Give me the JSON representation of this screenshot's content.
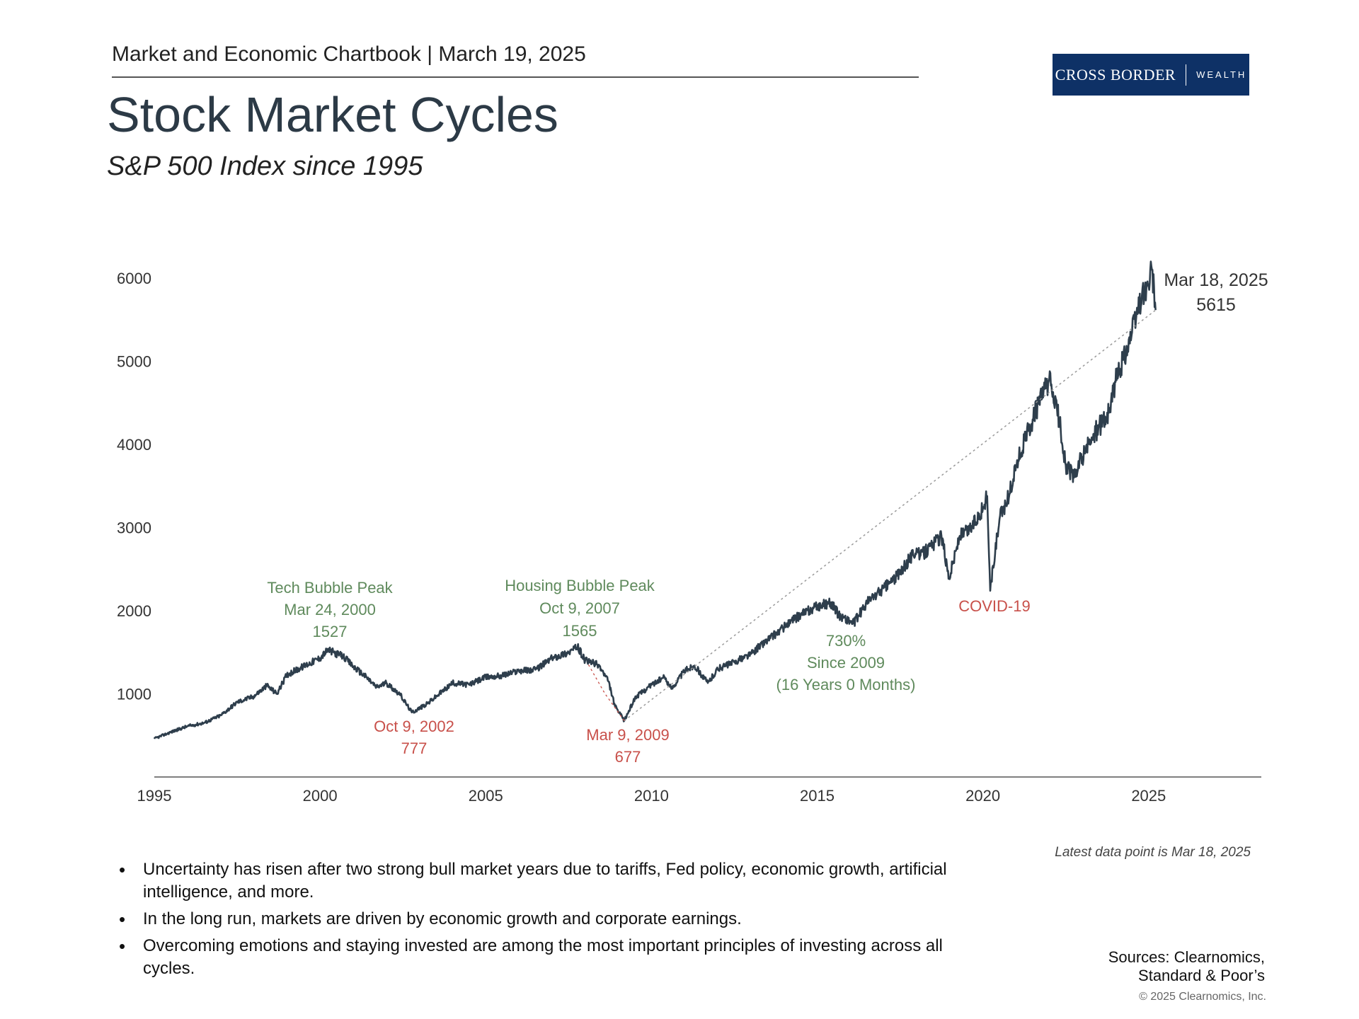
{
  "header": {
    "chartbook": "Market and Economic Chartbook | March 19, 2025",
    "title": "Stock Market Cycles",
    "subtitle": "S&P 500 Index since 1995"
  },
  "logo": {
    "main": "CROSS BORDER",
    "sub": "WEALTH",
    "color": "#0e3166"
  },
  "colors": {
    "line": "#2e3e4c",
    "green": "#5f8a5c",
    "red": "#c8504a",
    "trend": "#9a9a9a"
  },
  "latest_note": "Latest data point is Mar 18, 2025",
  "bullets": [
    "Uncertainty has risen after two strong bull market years due to tariffs, Fed policy, economic growth, artificial intelligence, and more.",
    "In the long run, markets are driven by economic growth and corporate earnings.",
    "Overcoming emotions and staying invested are among the most important principles of investing across all cycles."
  ],
  "sources": [
    "Sources: Clearnomics,",
    "Standard & Poor’s"
  ],
  "copyright": "© 2025 Clearnomics, Inc.",
  "chart_data": {
    "type": "line",
    "title": "Stock Market Cycles",
    "subtitle": "S&P 500 Index since 1995",
    "xlabel": "",
    "ylabel": "",
    "xlim": [
      1995,
      2028.4
    ],
    "ylim": [
      0,
      6400
    ],
    "x_ticks": [
      1995,
      2000,
      2005,
      2010,
      2015,
      2020,
      2025
    ],
    "y_ticks": [
      1000,
      2000,
      3000,
      4000,
      5000,
      6000
    ],
    "series": [
      {
        "name": "S&P 500 Index",
        "x": [
          1995.0,
          1995.5,
          1996.0,
          1996.5,
          1997.0,
          1997.5,
          1998.0,
          1998.4,
          1998.7,
          1999.0,
          1999.5,
          2000.0,
          2000.23,
          2000.7,
          2001.0,
          2001.4,
          2001.7,
          2002.0,
          2002.4,
          2002.77,
          2003.2,
          2003.6,
          2004.0,
          2004.5,
          2005.0,
          2005.5,
          2006.0,
          2006.5,
          2007.0,
          2007.5,
          2007.77,
          2008.0,
          2008.4,
          2008.7,
          2008.9,
          2009.18,
          2009.5,
          2010.0,
          2010.4,
          2010.6,
          2011.0,
          2011.3,
          2011.7,
          2012.0,
          2012.5,
          2013.0,
          2013.5,
          2014.0,
          2014.5,
          2015.0,
          2015.4,
          2015.65,
          2016.1,
          2016.5,
          2017.0,
          2017.5,
          2018.0,
          2018.1,
          2018.5,
          2018.75,
          2018.98,
          2019.3,
          2019.6,
          2020.0,
          2020.13,
          2020.22,
          2020.5,
          2020.8,
          2021.0,
          2021.5,
          2022.0,
          2022.3,
          2022.5,
          2022.75,
          2023.0,
          2023.4,
          2023.8,
          2024.0,
          2024.5,
          2024.8,
          2025.0,
          2025.1,
          2025.21
        ],
        "values": [
          460,
          540,
          610,
          650,
          740,
          900,
          970,
          1100,
          1000,
          1230,
          1330,
          1430,
          1527,
          1450,
          1330,
          1200,
          1080,
          1130,
          1000,
          777,
          870,
          1000,
          1130,
          1110,
          1200,
          1220,
          1280,
          1290,
          1430,
          1500,
          1565,
          1400,
          1350,
          1150,
          850,
          677,
          950,
          1110,
          1200,
          1060,
          1280,
          1340,
          1130,
          1300,
          1380,
          1480,
          1650,
          1800,
          1950,
          2050,
          2100,
          1950,
          1850,
          2100,
          2270,
          2450,
          2750,
          2650,
          2800,
          2900,
          2400,
          2900,
          2980,
          3230,
          3380,
          2240,
          3100,
          3400,
          3750,
          4300,
          4780,
          4300,
          3750,
          3600,
          3850,
          4150,
          4380,
          4750,
          5350,
          5800,
          5900,
          6100,
          5615
        ]
      },
      {
        "name": "Trend (trough to latest)",
        "x": [
          2009.18,
          2025.21
        ],
        "values": [
          677,
          5615
        ]
      },
      {
        "name": "Dip connector",
        "x": [
          2008.1,
          2008.6,
          2009.18
        ],
        "values": [
          1350,
          1000,
          677
        ]
      }
    ],
    "annotations": [
      {
        "id": "tech-peak",
        "lines": [
          "Tech Bubble Peak",
          "Mar 24, 2000",
          "1527"
        ],
        "color": "green",
        "x": 2000.23,
        "value": 1527
      },
      {
        "id": "trough-2002",
        "lines": [
          "Oct 9, 2002",
          "777"
        ],
        "color": "red",
        "x": 2002.77,
        "value": 777
      },
      {
        "id": "housing-peak",
        "lines": [
          "Housing Bubble Peak",
          "Oct 9, 2007",
          "1565"
        ],
        "color": "green",
        "x": 2007.77,
        "value": 1565
      },
      {
        "id": "trough-2009",
        "lines": [
          "Mar 9, 2009",
          "677"
        ],
        "color": "red",
        "x": 2009.18,
        "value": 677
      },
      {
        "id": "gain-since-2009",
        "lines": [
          "730%",
          "Since 2009",
          "(16 Years 0 Months)"
        ],
        "color": "green",
        "x": 2016.4,
        "value": 1450
      },
      {
        "id": "covid",
        "lines": [
          "COVID-19"
        ],
        "color": "red",
        "x": 2020.2,
        "value": 2240
      },
      {
        "id": "latest",
        "lines": [
          "Mar 18, 2025",
          "5615"
        ],
        "color": "dark",
        "x": 2025.21,
        "value": 5615
      }
    ]
  }
}
